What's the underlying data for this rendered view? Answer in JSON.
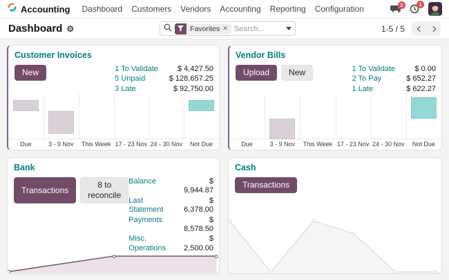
{
  "nav": {
    "app_name": "Accounting",
    "items": [
      "Dashboard",
      "Customers",
      "Vendors",
      "Accounting",
      "Reporting",
      "Configuration"
    ],
    "messages_badge": "2",
    "activities_badge": "1"
  },
  "control_panel": {
    "title": "Dashboard",
    "search": {
      "facet_label": "Favorites",
      "facet_remove": "✕",
      "placeholder": "Search..."
    },
    "pager": {
      "range": "1-5 / 5"
    }
  },
  "cards": [
    {
      "title": "Customer Invoices",
      "buttons": [
        {
          "label": "New",
          "style": "primary"
        }
      ],
      "stats": [
        {
          "label": "1 To Validate",
          "amount": "$ 4,427.50"
        },
        {
          "label": "5 Unpaid",
          "amount": "$ 128,657.25"
        },
        {
          "label": "3 Late",
          "amount": "$ 92,750.00"
        }
      ]
    },
    {
      "title": "Vendor Bills",
      "buttons": [
        {
          "label": "Upload",
          "style": "primary"
        },
        {
          "label": "New",
          "style": "secondary"
        }
      ],
      "stats": [
        {
          "label": "1 To Validate",
          "amount": "$ 0.00"
        },
        {
          "label": "2 To Pay",
          "amount": "$ 652.27"
        },
        {
          "label": "1 Late",
          "amount": "$ 622.27"
        }
      ]
    },
    {
      "title": "Bank",
      "buttons": [
        {
          "label": "Transactions",
          "style": "primary"
        },
        {
          "label": "8 to reconcile",
          "style": "secondary"
        }
      ],
      "stats": [
        {
          "label": "Balance",
          "amount": "$ 9,944.87"
        },
        {
          "label": "Last Statement",
          "amount": "$ 6,378.00"
        },
        {
          "label": "Payments",
          "amount": "$ 8,578.50"
        },
        {
          "label": "Misc. Operations",
          "amount": "$ 2,500.00"
        }
      ]
    },
    {
      "title": "Cash",
      "buttons": [
        {
          "label": "Transactions",
          "style": "primary"
        }
      ],
      "stats": []
    }
  ],
  "chart_data": [
    {
      "type": "bar",
      "title": "Customer Invoices",
      "categories": [
        "Due",
        "3 - 9 Nov",
        "This Week",
        "17 - 23 Nov",
        "24 - 30 Nov",
        "Not Due"
      ],
      "values_rel_pct": [
        25,
        -50,
        0,
        0,
        0,
        26
      ],
      "baseline_pct": 39,
      "bar_colors": [
        "#d9d0d8",
        "#d9d0d8",
        "",
        "",
        "",
        "#93d8d4"
      ],
      "ylabels": "none shown; heights estimated as % of plot height (positive above baseline, negative below)",
      "grid": "vertical column separators only",
      "legend": "none"
    },
    {
      "type": "bar",
      "title": "Vendor Bills",
      "categories": [
        "Due",
        "3 - 9 Nov",
        "This Week",
        "17 - 23 Nov",
        "24 - 30 Nov",
        "Not Due"
      ],
      "values_rel_pct": [
        0,
        -47,
        0,
        0,
        0,
        48
      ],
      "baseline_pct": 55,
      "bar_colors": [
        "",
        "#d9d0d8",
        "",
        "",
        "",
        "#93d8d4"
      ],
      "ylabels": "none shown; heights estimated as % of plot height",
      "grid": "vertical column separators only",
      "legend": "none"
    },
    {
      "type": "line",
      "title": "Bank",
      "points_pct": [
        [
          0.8,
          93
        ],
        [
          50.3,
          15
        ],
        [
          98.8,
          15
        ]
      ],
      "stroke": "#765268",
      "fill": "#ece3ea",
      "ylabels": "none shown; area chart rises from low at left to flat plateau at right",
      "legend": "none"
    },
    {
      "type": "line",
      "title": "Cash",
      "points_pct": [
        [
          0.5,
          14
        ],
        [
          19.8,
          98
        ],
        [
          39.9,
          14
        ],
        [
          58.8,
          35
        ],
        [
          78.2,
          98
        ],
        [
          97.7,
          98
        ]
      ],
      "stroke": "#e2dfe2",
      "fill": "#f7f6f7",
      "ylabels": "none shown; faint gray zig-zag area chart",
      "legend": "none"
    }
  ],
  "colors": {
    "primary_button": "#714b67",
    "teal_link": "#017e84",
    "card_left_accent": "#7d5fa5",
    "bar_gray": "#d9d0d8",
    "bar_teal": "#93d8d4",
    "badge_red": "#d9534f"
  }
}
